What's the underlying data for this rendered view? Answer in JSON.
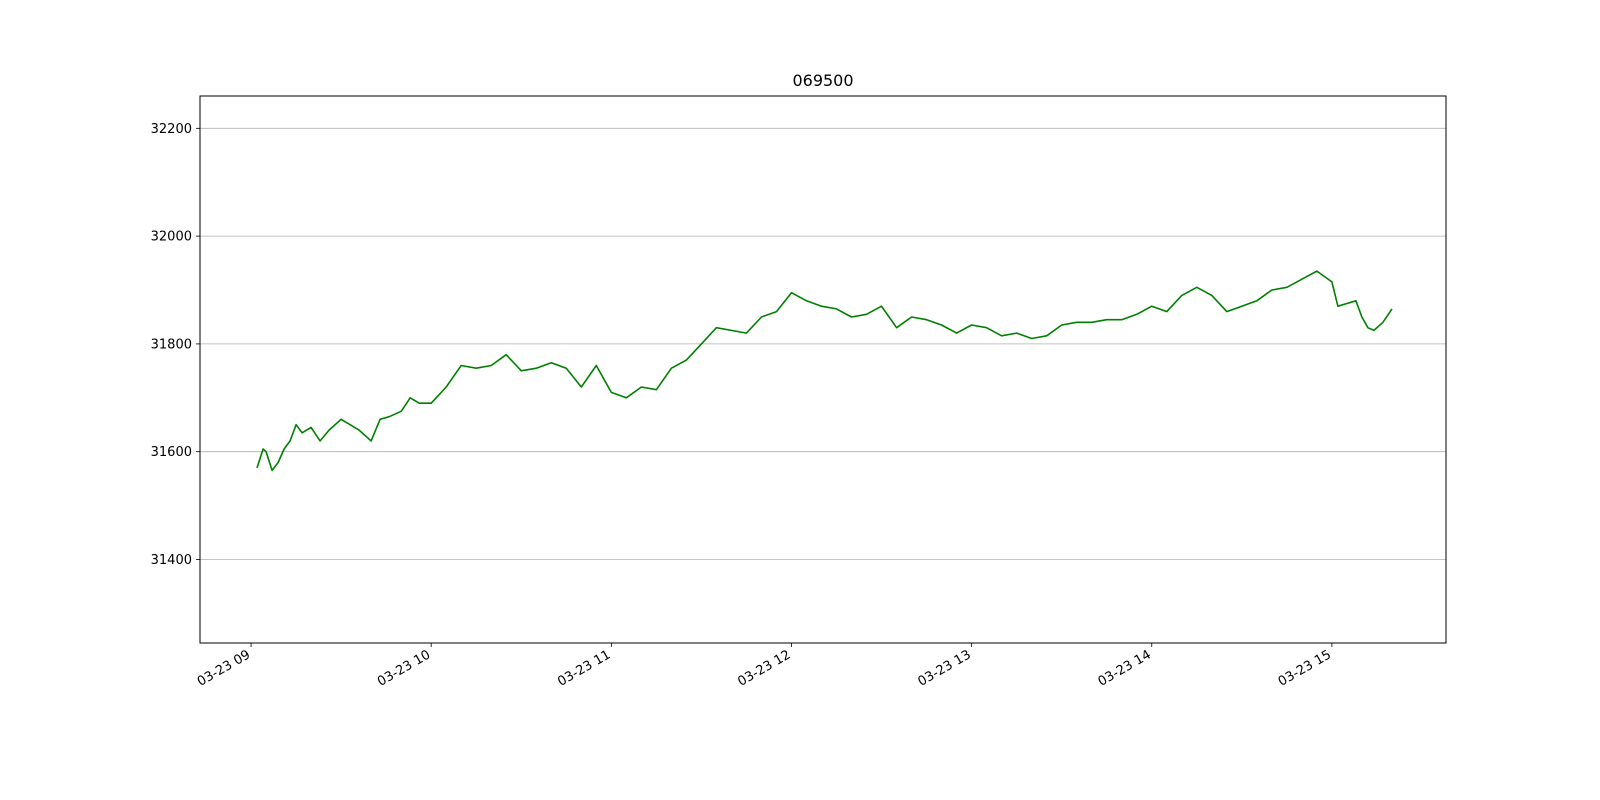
{
  "chart_data": {
    "type": "line",
    "title": "069500",
    "xlabel": "",
    "ylabel": "",
    "x_ticks": [
      "03-23 09",
      "03-23 10",
      "03-23 11",
      "03-23 12",
      "03-23 13",
      "03-23 14",
      "03-23 15"
    ],
    "y_ticks": [
      "31400",
      "31600",
      "31800",
      "32000",
      "32200"
    ],
    "ylim": [
      31245,
      32260
    ],
    "xlim": [
      "03-23 08:43",
      "03-23 15:38"
    ],
    "grid": "y-axis only",
    "line_color": "#008000",
    "series": [
      {
        "x": [
          "09:02",
          "09:04",
          "09:05",
          "09:07",
          "09:09",
          "09:11",
          "09:13",
          "09:15",
          "09:17",
          "09:20",
          "09:23",
          "09:26",
          "09:30",
          "09:33",
          "09:36",
          "09:40",
          "09:43",
          "09:46",
          "09:50",
          "09:53",
          "09:56",
          "10:00",
          "10:05",
          "10:10",
          "10:15",
          "10:20",
          "10:25",
          "10:30",
          "10:35",
          "10:40",
          "10:45",
          "10:50",
          "10:55",
          "11:00",
          "11:05",
          "11:10",
          "11:15",
          "11:20",
          "11:25",
          "11:30",
          "11:35",
          "11:40",
          "11:45",
          "11:50",
          "11:55",
          "12:00",
          "12:05",
          "12:10",
          "12:15",
          "12:20",
          "12:25",
          "12:30",
          "12:35",
          "12:40",
          "12:45",
          "12:50",
          "12:55",
          "13:00",
          "13:05",
          "13:10",
          "13:15",
          "13:20",
          "13:25",
          "13:30",
          "13:35",
          "13:40",
          "13:45",
          "13:50",
          "13:55",
          "14:00",
          "14:05",
          "14:10",
          "14:15",
          "14:20",
          "14:25",
          "14:30",
          "14:35",
          "14:40",
          "14:45",
          "14:50",
          "14:55",
          "15:00",
          "15:02",
          "15:05",
          "15:08",
          "15:10",
          "15:12",
          "15:14",
          "15:17",
          "15:20"
        ],
        "y": [
          31570,
          31605,
          31600,
          31565,
          31580,
          31605,
          31620,
          31650,
          31635,
          31645,
          31620,
          31640,
          31660,
          31650,
          31640,
          31620,
          31660,
          31665,
          31675,
          31700,
          31690,
          31690,
          31720,
          31760,
          31755,
          31760,
          31780,
          31750,
          31755,
          31765,
          31755,
          31720,
          31760,
          31710,
          31700,
          31720,
          31715,
          31755,
          31770,
          31800,
          31830,
          31825,
          31820,
          31850,
          31860,
          31895,
          31880,
          31870,
          31865,
          31850,
          31855,
          31870,
          31830,
          31850,
          31845,
          31835,
          31820,
          31835,
          31830,
          31815,
          31820,
          31810,
          31815,
          31835,
          31840,
          31840,
          31845,
          31845,
          31855,
          31870,
          31860,
          31890,
          31905,
          31890,
          31860,
          31870,
          31880,
          31900,
          31905,
          31920,
          31935,
          31915,
          31870,
          31875,
          31880,
          31850,
          31830,
          31825,
          31840,
          31865
        ]
      }
    ]
  }
}
